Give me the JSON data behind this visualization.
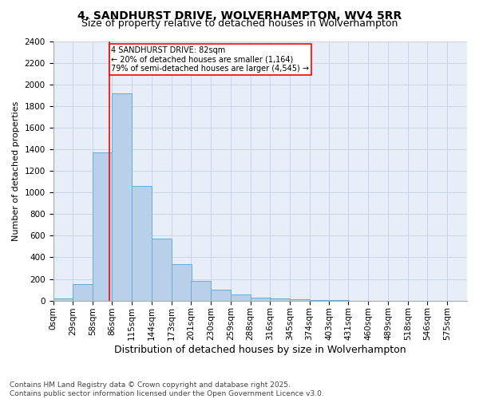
{
  "title": "4, SANDHURST DRIVE, WOLVERHAMPTON, WV4 5RR",
  "subtitle": "Size of property relative to detached houses in Wolverhampton",
  "xlabel": "Distribution of detached houses by size in Wolverhampton",
  "ylabel": "Number of detached properties",
  "bar_values": [
    20,
    150,
    1370,
    1920,
    1060,
    570,
    340,
    180,
    100,
    60,
    30,
    20,
    10,
    5,
    2,
    1,
    1,
    1,
    0,
    1
  ],
  "bin_labels": [
    "0sqm",
    "29sqm",
    "58sqm",
    "86sqm",
    "115sqm",
    "144sqm",
    "173sqm",
    "201sqm",
    "230sqm",
    "259sqm",
    "288sqm",
    "316sqm",
    "345sqm",
    "374sqm",
    "403sqm",
    "431sqm",
    "460sqm",
    "489sqm",
    "518sqm",
    "546sqm",
    "575sqm"
  ],
  "bar_color": "#b8d0ea",
  "bar_edgecolor": "#6aaad4",
  "grid_color": "#c8d4e8",
  "background_color": "#e8eef8",
  "vline_x": 82,
  "vline_color": "red",
  "annotation_text": "4 SANDHURST DRIVE: 82sqm\n← 20% of detached houses are smaller (1,164)\n79% of semi-detached houses are larger (4,545) →",
  "annotation_boxcolor": "white",
  "annotation_edgecolor": "red",
  "ylim": [
    0,
    2400
  ],
  "yticks": [
    0,
    200,
    400,
    600,
    800,
    1000,
    1200,
    1400,
    1600,
    1800,
    2000,
    2200,
    2400
  ],
  "footnote": "Contains HM Land Registry data © Crown copyright and database right 2025.\nContains public sector information licensed under the Open Government Licence v3.0.",
  "title_fontsize": 10,
  "subtitle_fontsize": 9,
  "xlabel_fontsize": 9,
  "ylabel_fontsize": 8,
  "tick_fontsize": 7.5,
  "footnote_fontsize": 6.5,
  "bin_width": 29,
  "bin_starts": [
    0,
    29,
    58,
    86,
    115,
    144,
    173,
    201,
    230,
    259,
    288,
    316,
    345,
    374,
    403,
    431,
    460,
    489,
    518,
    546
  ],
  "annot_fontsize": 7
}
